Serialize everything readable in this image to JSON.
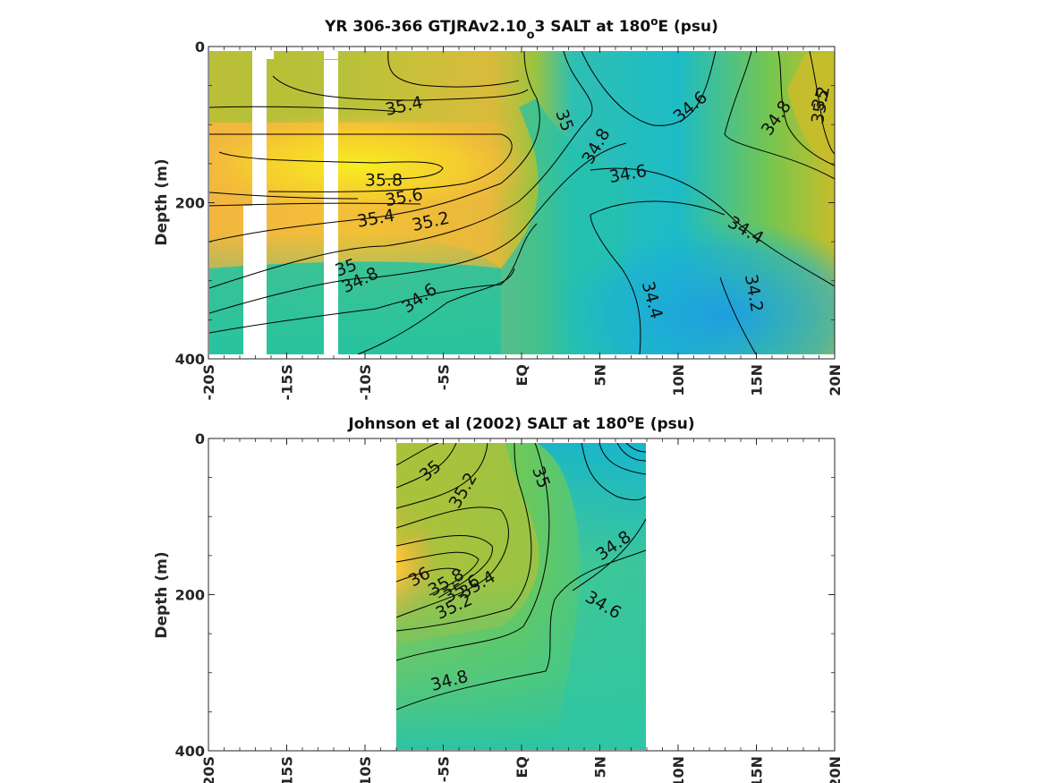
{
  "chart_data": [
    {
      "type": "heatmap",
      "title_parts": {
        "main": "YR 306-366 GTJRAv2.10",
        "subscript": "o",
        "after_sub": "3 SALT at 180",
        "superscript": "o",
        "tail": "E (psu)"
      },
      "ylabel": "Depth (m)",
      "xlim": [
        -20,
        20
      ],
      "ylim": [
        0,
        400
      ],
      "x_ticks": [
        -20,
        -15,
        -10,
        -5,
        0,
        5,
        10,
        15,
        20
      ],
      "x_tick_labels": [
        "-20S",
        "-15S",
        "-10S",
        "-5S",
        "EQ",
        "5N",
        "10N",
        "15N",
        "20N"
      ],
      "y_ticks": [
        0,
        200,
        400
      ],
      "y_tick_labels": [
        "0",
        "200",
        "400"
      ],
      "contour_labels": [
        {
          "text": "35.4",
          "x": -7.5,
          "y": 77,
          "angle": -12
        },
        {
          "text": "35",
          "x": 2.7,
          "y": 95,
          "angle": 70
        },
        {
          "text": "34.8",
          "x": 4.8,
          "y": 128,
          "angle": -60
        },
        {
          "text": "34.6",
          "x": 10.8,
          "y": 78,
          "angle": -40
        },
        {
          "text": "34.8",
          "x": 16.3,
          "y": 92,
          "angle": -55
        },
        {
          "text": "35",
          "x": 19.3,
          "y": 68,
          "angle": -70
        },
        {
          "text": "35.2",
          "x": 22.3,
          "y": 75,
          "angle": -80
        },
        {
          "text": "35.8",
          "x": -8.8,
          "y": 172,
          "angle": 0
        },
        {
          "text": "35.6",
          "x": -7.5,
          "y": 194,
          "angle": -10
        },
        {
          "text": "35.4",
          "x": -9.3,
          "y": 221,
          "angle": -10
        },
        {
          "text": "35.2",
          "x": -5.8,
          "y": 225,
          "angle": -12
        },
        {
          "text": "34.6",
          "x": 6.8,
          "y": 164,
          "angle": -10
        },
        {
          "text": "34.4",
          "x": 14.3,
          "y": 236,
          "angle": 30
        },
        {
          "text": "35",
          "x": -11.2,
          "y": 284,
          "angle": -20
        },
        {
          "text": "34.8",
          "x": -10.3,
          "y": 300,
          "angle": -25
        },
        {
          "text": "34.6",
          "x": -6.5,
          "y": 323,
          "angle": -35
        },
        {
          "text": "34.4",
          "x": 8.3,
          "y": 325,
          "angle": 75
        },
        {
          "text": "34.2",
          "x": 14.8,
          "y": 316,
          "angle": 80
        }
      ],
      "colormap": "parula",
      "color_range": [
        34.0,
        36.0
      ],
      "masked_columns": "white gaps near 17.5S-16S and 12.5S-11.5S"
    },
    {
      "type": "heatmap",
      "title_parts": {
        "main": "Johnson et al (2002) SALT at 180",
        "superscript": "o",
        "tail": "E (psu)"
      },
      "ylabel": "Depth (m)",
      "xlim": [
        -20,
        20
      ],
      "ylim": [
        0,
        400
      ],
      "data_xrange": [
        -8,
        8
      ],
      "x_ticks": [
        -20,
        -15,
        -10,
        -5,
        0,
        5,
        10,
        15,
        20
      ],
      "x_tick_labels": [
        "-20S",
        "-15S",
        "-10S",
        "-5S",
        "EQ",
        "5N",
        "10N",
        "15N",
        "20N"
      ],
      "y_ticks": [
        0,
        200,
        400
      ],
      "y_tick_labels": [
        "0",
        "200",
        "400"
      ],
      "contour_labels": [
        {
          "text": "35",
          "x": -5.8,
          "y": 42,
          "angle": -40
        },
        {
          "text": "35.2",
          "x": -3.7,
          "y": 67,
          "angle": -60
        },
        {
          "text": "35",
          "x": 1.2,
          "y": 50,
          "angle": 70
        },
        {
          "text": "34.8",
          "x": 5.9,
          "y": 138,
          "angle": -35
        },
        {
          "text": "36",
          "x": -6.5,
          "y": 178,
          "angle": -30
        },
        {
          "text": "35.8",
          "x": -4.8,
          "y": 185,
          "angle": -30
        },
        {
          "text": "35.6",
          "x": -3.8,
          "y": 193,
          "angle": -30
        },
        {
          "text": "35.4",
          "x": -2.8,
          "y": 188,
          "angle": -30
        },
        {
          "text": "35.2",
          "x": -4.3,
          "y": 216,
          "angle": -25
        },
        {
          "text": "34.6",
          "x": 5.2,
          "y": 214,
          "angle": 30
        },
        {
          "text": "34.8",
          "x": -4.6,
          "y": 311,
          "angle": -15
        }
      ],
      "colormap": "parula",
      "color_range": [
        34.0,
        36.0
      ]
    }
  ]
}
